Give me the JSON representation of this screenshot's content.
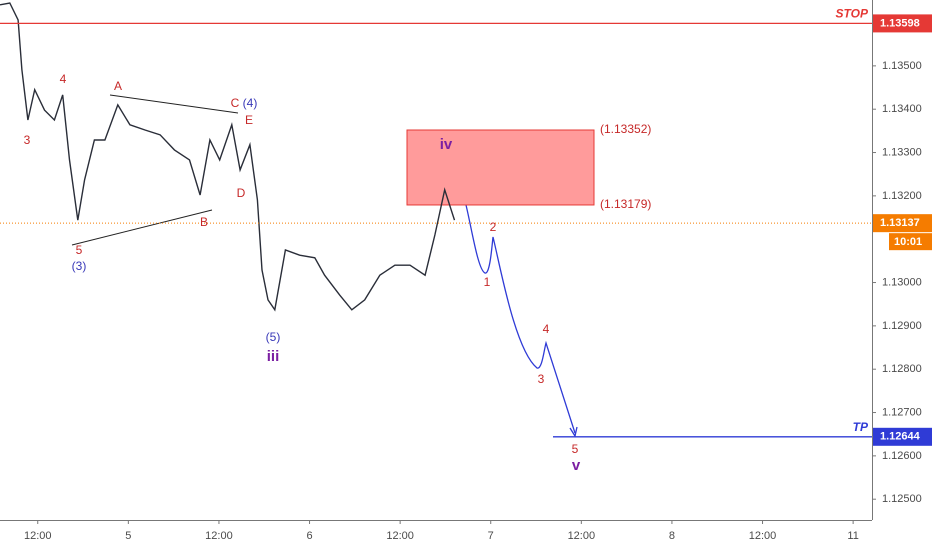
{
  "chart_data": {
    "type": "line",
    "color": "#2a2e39",
    "x": [
      7.0,
      8.3,
      9.4,
      9.9,
      10.7,
      11.6,
      12.9,
      14.2,
      15.3,
      16.2,
      17.3,
      18.2,
      19.5,
      20.9,
      22.6,
      24.2,
      26.2,
      28.2,
      30.1,
      32.1,
      33.5,
      34.8,
      36.1,
      37.7,
      38.8,
      40.1,
      41.1,
      41.7,
      42.5,
      43.4,
      44.8,
      46.7,
      48.7,
      50.0,
      52.0,
      53.6,
      55.3,
      57.3,
      59.3,
      61.3,
      63.3,
      64.6,
      65.9,
      67.2
    ],
    "values": [
      1.13641,
      1.13645,
      1.13606,
      1.13491,
      1.13375,
      1.13445,
      1.13398,
      1.13375,
      1.13433,
      1.13283,
      1.13144,
      1.13237,
      1.13329,
      1.13329,
      1.1341,
      1.13364,
      1.13352,
      1.13341,
      1.13306,
      1.13283,
      1.13202,
      1.13329,
      1.13283,
      1.13364,
      1.1326,
      1.13318,
      1.13191,
      1.13029,
      1.1296,
      1.12937,
      1.13075,
      1.13063,
      1.13057,
      1.13017,
      1.12971,
      1.12937,
      1.1296,
      1.13017,
      1.1304,
      1.1304,
      1.13017,
      1.1311,
      1.13214,
      1.13144
    ],
    "xlim": [
      7,
      122.5
    ],
    "ylim": [
      1.12452,
      1.13652
    ],
    "xticks": [
      {
        "value": 12,
        "label": "12:00"
      },
      {
        "value": 24,
        "label": "5"
      },
      {
        "value": 36,
        "label": "12:00"
      },
      {
        "value": 48,
        "label": "6"
      },
      {
        "value": 60,
        "label": "12:00"
      },
      {
        "value": 72,
        "label": "7"
      },
      {
        "value": 84,
        "label": "12:00"
      },
      {
        "value": 96,
        "label": "8"
      },
      {
        "value": 108,
        "label": "12:00"
      },
      {
        "value": 120,
        "label": "11"
      }
    ],
    "yticks": [
      {
        "value": 1.125,
        "label": "1.12500"
      },
      {
        "value": 1.126,
        "label": "1.12600"
      },
      {
        "value": 1.127,
        "label": "1.12700"
      },
      {
        "value": 1.128,
        "label": "1.12800"
      },
      {
        "value": 1.129,
        "label": "1.12900"
      },
      {
        "value": 1.13,
        "label": "1.13000"
      },
      {
        "value": 1.132,
        "label": "1.13200"
      },
      {
        "value": 1.133,
        "label": "1.13300"
      },
      {
        "value": 1.134,
        "label": "1.13400"
      },
      {
        "value": 1.135,
        "label": "1.13500"
      }
    ],
    "levels": [
      {
        "name": "STOP",
        "value": 1.13598,
        "color": "#e53935"
      },
      {
        "name": "TP",
        "value": 1.12644,
        "color": "#2f3bd6"
      }
    ],
    "last_price": 1.13137,
    "countdown": "10:01",
    "zone": {
      "top": {
        "value": 1.13352,
        "label": "(1.13352)"
      },
      "bottom": {
        "value": 1.13179,
        "label": "(1.13179)"
      }
    },
    "annotations": [
      {
        "text": "4",
        "color": "#c62828"
      },
      {
        "text": "3",
        "color": "#c62828"
      },
      {
        "text": "5",
        "color": "#c62828"
      },
      {
        "text": "(3)",
        "color": "#3838b8"
      },
      {
        "text": "A",
        "color": "#c62828"
      },
      {
        "text": "B",
        "color": "#c62828"
      },
      {
        "text": "C",
        "color": "#c62828"
      },
      {
        "text": "(4)",
        "color": "#3838b8"
      },
      {
        "text": "E",
        "color": "#c62828"
      },
      {
        "text": "D",
        "color": "#c62828"
      },
      {
        "text": "(5)",
        "color": "#3838b8"
      },
      {
        "text": "iii",
        "color": "#7b1fa2"
      },
      {
        "text": "iv",
        "color": "#7b1fa2"
      },
      {
        "text": "1",
        "color": "#c62828"
      },
      {
        "text": "2",
        "color": "#c62828"
      },
      {
        "text": "3",
        "color": "#c62828"
      },
      {
        "text": "4",
        "color": "#c62828"
      },
      {
        "text": "5",
        "color": "#c62828"
      },
      {
        "text": "v",
        "color": "#7b1fa2"
      }
    ]
  }
}
